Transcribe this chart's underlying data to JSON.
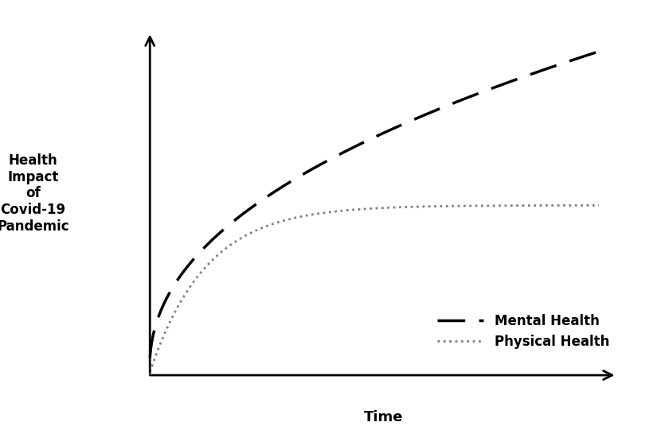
{
  "title": "",
  "xlabel": "Time",
  "ylabel": "Health\nImpact\nof\nCovid-19\nPandemic",
  "background_color": "#ffffff",
  "mental_health_color": "#000000",
  "physical_health_color": "#808080",
  "legend_labels": [
    "Mental Health",
    "Physical Health"
  ],
  "xlabel_fontsize": 13,
  "ylabel_fontsize": 12,
  "legend_fontsize": 12
}
